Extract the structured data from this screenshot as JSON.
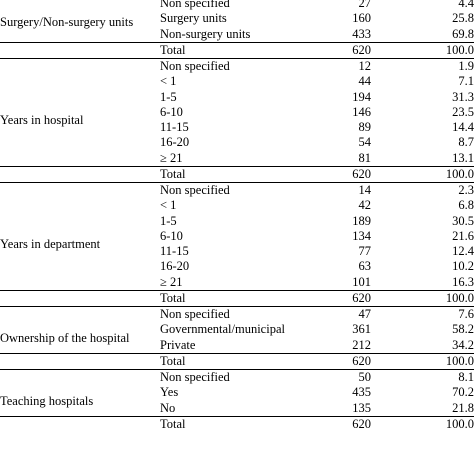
{
  "groups": [
    {
      "label": "Surgery/Non-surgery units",
      "rows": [
        {
          "cat": "Non specified",
          "n": "27",
          "pct": "4.4"
        },
        {
          "cat": "Surgery units",
          "n": "160",
          "pct": "25.8"
        },
        {
          "cat": "Non-surgery units",
          "n": "433",
          "pct": "69.8"
        },
        {
          "cat": "Total",
          "n": "620",
          "pct": "100.0"
        }
      ]
    },
    {
      "label": "Years in hospital",
      "rows": [
        {
          "cat": "Non specified",
          "n": "12",
          "pct": "1.9"
        },
        {
          "cat": "< 1",
          "n": "44",
          "pct": "7.1"
        },
        {
          "cat": "1-5",
          "n": "194",
          "pct": "31.3"
        },
        {
          "cat": "6-10",
          "n": "146",
          "pct": "23.5"
        },
        {
          "cat": "11-15",
          "n": "89",
          "pct": "14.4"
        },
        {
          "cat": "16-20",
          "n": "54",
          "pct": "8.7"
        },
        {
          "cat": "≥ 21",
          "n": "81",
          "pct": "13.1"
        },
        {
          "cat": "Total",
          "n": "620",
          "pct": "100.0"
        }
      ]
    },
    {
      "label": "Years in department",
      "rows": [
        {
          "cat": "Non specified",
          "n": "14",
          "pct": "2.3"
        },
        {
          "cat": "< 1",
          "n": "42",
          "pct": "6.8"
        },
        {
          "cat": "1-5",
          "n": "189",
          "pct": "30.5"
        },
        {
          "cat": "6-10",
          "n": "134",
          "pct": "21.6"
        },
        {
          "cat": "11-15",
          "n": "77",
          "pct": "12.4"
        },
        {
          "cat": "16-20",
          "n": "63",
          "pct": "10.2"
        },
        {
          "cat": "≥ 21",
          "n": "101",
          "pct": "16.3"
        },
        {
          "cat": "Total",
          "n": "620",
          "pct": "100.0"
        }
      ]
    },
    {
      "label": "Ownership of the hospital",
      "rows": [
        {
          "cat": "Non specified",
          "n": "47",
          "pct": "7.6"
        },
        {
          "cat": "Governmental/municipal",
          "n": "361",
          "pct": "58.2"
        },
        {
          "cat": "Private",
          "n": "212",
          "pct": "34.2"
        },
        {
          "cat": "Total",
          "n": "620",
          "pct": "100.0"
        }
      ]
    },
    {
      "label": "Teaching hospitals",
      "rows": [
        {
          "cat": "Non specified",
          "n": "50",
          "pct": "8.1"
        },
        {
          "cat": "Yes",
          "n": "435",
          "pct": "70.2"
        },
        {
          "cat": "No",
          "n": "135",
          "pct": "21.8"
        },
        {
          "cat": "Total",
          "n": "620",
          "pct": "100.0"
        }
      ]
    }
  ]
}
